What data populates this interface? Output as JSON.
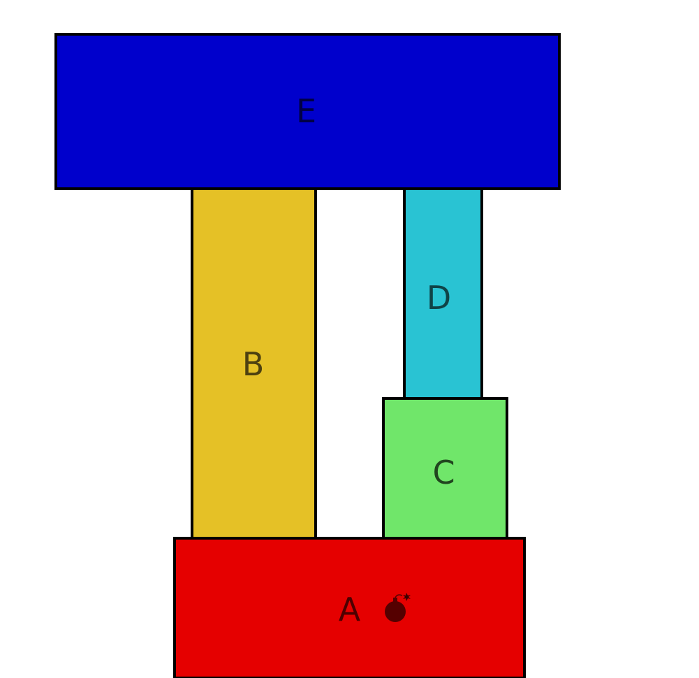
{
  "blocks": [
    {
      "id": "E",
      "label": "E",
      "color": "#0000cc"
    },
    {
      "id": "B",
      "label": "B",
      "color": "#e5c126"
    },
    {
      "id": "D",
      "label": "D",
      "color": "#29c3d3"
    },
    {
      "id": "C",
      "label": "C",
      "color": "#70e66a"
    },
    {
      "id": "A",
      "label": "A",
      "color": "#e50000"
    }
  ],
  "bomb": {
    "icon": "bomb-icon",
    "color": "#550000",
    "location": "block A"
  }
}
